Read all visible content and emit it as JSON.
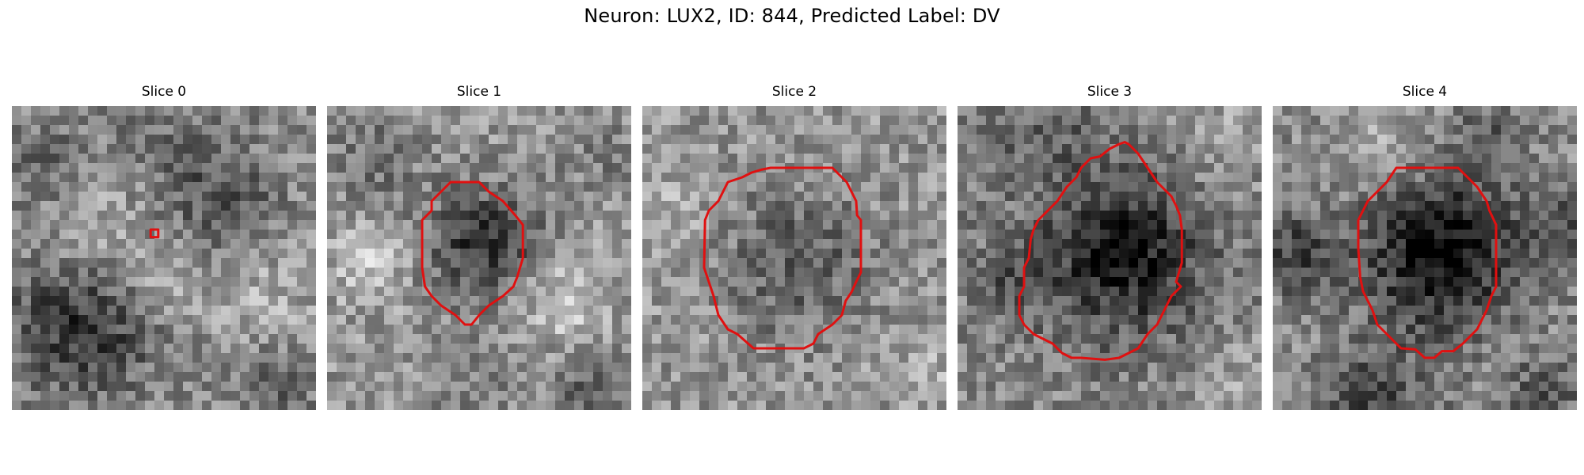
{
  "figure": {
    "title": "Neuron: LUX2, ID: 844, Predicted Label: DV",
    "contour_color": "#e01010"
  },
  "panels": [
    {
      "title": "Slice 0"
    },
    {
      "title": "Slice 1"
    },
    {
      "title": "Slice 2"
    },
    {
      "title": "Slice 3"
    },
    {
      "title": "Slice 4"
    }
  ]
}
